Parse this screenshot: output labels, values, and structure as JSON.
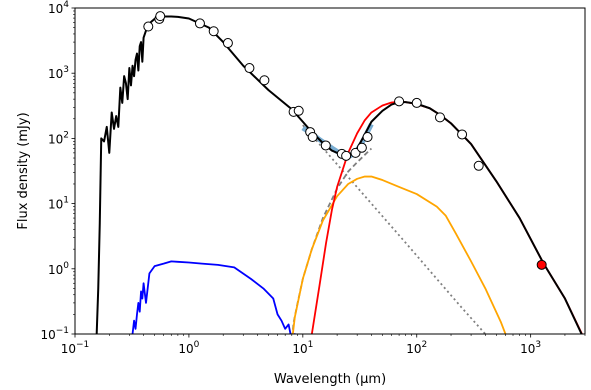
{
  "chart_data": {
    "type": "line",
    "xlabel": "Wavelength (μm)",
    "ylabel": "Flux density (mJy)",
    "x_scale": "log",
    "y_scale": "log",
    "xlim": [
      0.1,
      3000
    ],
    "ylim": [
      0.1,
      10000
    ],
    "grid": false,
    "x_ticks": [
      {
        "value": 0.1,
        "base": "10",
        "exp": "−1"
      },
      {
        "value": 1,
        "base": "10",
        "exp": "0"
      },
      {
        "value": 10,
        "base": "10",
        "exp": "1"
      },
      {
        "value": 100,
        "base": "10",
        "exp": "2"
      },
      {
        "value": 1000,
        "base": "10",
        "exp": "3"
      }
    ],
    "y_ticks": [
      {
        "value": 0.1,
        "base": "10",
        "exp": "−1"
      },
      {
        "value": 1,
        "base": "10",
        "exp": "0"
      },
      {
        "value": 10,
        "base": "10",
        "exp": "1"
      },
      {
        "value": 100,
        "base": "10",
        "exp": "2"
      },
      {
        "value": 1000,
        "base": "10",
        "exp": "3"
      },
      {
        "value": 10000,
        "base": "10",
        "exp": "4"
      }
    ],
    "series": [
      {
        "color": "#1f77b4",
        "width": 5,
        "opacity": 0.6,
        "dash": "",
        "x": [
          10,
          12,
          14,
          16,
          18,
          20,
          22,
          24,
          26,
          28,
          30,
          33,
          36,
          40
        ],
        "y": [
          145,
          118,
          96,
          82,
          71,
          63,
          57,
          54,
          54,
          58,
          66,
          85,
          115,
          165
        ]
      },
      {
        "color": "#808080",
        "width": 1.8,
        "opacity": 1,
        "dash": "2,3",
        "x": [
          10,
          20,
          40,
          80,
          150,
          250,
          400,
          700
        ],
        "y": [
          160,
          40,
          10,
          2.5,
          0.7,
          0.25,
          0.1,
          0.04
        ]
      },
      {
        "color": "#808080",
        "width": 1.8,
        "opacity": 1,
        "dash": "5,3",
        "x": [
          7.8,
          8.3,
          9,
          10,
          12,
          15,
          20,
          25,
          30,
          35,
          40
        ],
        "y": [
          0.05,
          0.15,
          0.3,
          0.7,
          2,
          6,
          17,
          31,
          43,
          56,
          70
        ]
      },
      {
        "color": "#0000ff",
        "width": 1.8,
        "opacity": 1,
        "dash": "",
        "x": [
          0.3,
          0.32,
          0.33,
          0.34,
          0.35,
          0.36,
          0.37,
          0.38,
          0.39,
          0.4,
          0.42,
          0.45,
          0.5,
          0.6,
          0.7,
          0.8,
          1.0,
          1.3,
          1.8,
          2.5,
          3.5,
          4.5,
          5.5,
          6,
          6.5,
          7,
          7.5,
          8,
          8.5,
          9
        ],
        "y": [
          0.06,
          0.1,
          0.16,
          0.12,
          0.2,
          0.3,
          0.22,
          0.45,
          0.35,
          0.6,
          0.3,
          0.85,
          1.1,
          1.2,
          1.3,
          1.28,
          1.25,
          1.2,
          1.15,
          1.05,
          0.7,
          0.5,
          0.35,
          0.2,
          0.16,
          0.12,
          0.14,
          0.08,
          0.1,
          0.06
        ]
      },
      {
        "color": "#ffa500",
        "width": 1.8,
        "opacity": 1,
        "dash": "",
        "x": [
          7.8,
          8.5,
          10,
          12,
          15,
          20,
          25,
          30,
          35,
          40,
          50,
          70,
          100,
          150,
          180,
          220,
          300,
          400,
          550,
          700
        ],
        "y": [
          0.05,
          0.18,
          0.7,
          2,
          5.5,
          13,
          20,
          24,
          26,
          26,
          23,
          18,
          14,
          9,
          6.5,
          3.5,
          1.3,
          0.5,
          0.15,
          0.05
        ]
      },
      {
        "color": "#ff0000",
        "width": 1.8,
        "opacity": 1,
        "dash": "",
        "x": [
          11,
          12,
          14,
          16,
          18,
          20,
          25,
          30,
          35,
          40,
          50,
          60,
          70,
          80,
          100,
          130,
          160,
          200,
          300,
          500,
          800,
          1300,
          2000,
          3000
        ],
        "y": [
          0.05,
          0.1,
          0.55,
          2.5,
          8,
          18,
          60,
          120,
          190,
          250,
          320,
          355,
          365,
          360,
          335,
          290,
          230,
          170,
          82,
          22,
          6,
          1.2,
          0.35,
          0.08
        ]
      },
      {
        "color": "#000000",
        "width": 2,
        "opacity": 1,
        "dash": "",
        "x": [
          0.15,
          0.155,
          0.16,
          0.165,
          0.17,
          0.18,
          0.19,
          0.2,
          0.21,
          0.22,
          0.23,
          0.24,
          0.25,
          0.26,
          0.27,
          0.28,
          0.29,
          0.3,
          0.31,
          0.32,
          0.33,
          0.34,
          0.35,
          0.36,
          0.37,
          0.38,
          0.39,
          0.4,
          0.42,
          0.45,
          0.5,
          0.55,
          0.6,
          0.7,
          0.8,
          1.0,
          1.5,
          2,
          3,
          5,
          8,
          10,
          12,
          15,
          18,
          20,
          22,
          25,
          30,
          35,
          40,
          50,
          60,
          70,
          80,
          100,
          130,
          160,
          200,
          300,
          500,
          800,
          1300,
          2000,
          2800
        ],
        "y": [
          0.05,
          0.1,
          0.5,
          5,
          100,
          90,
          150,
          60,
          250,
          140,
          220,
          150,
          600,
          350,
          900,
          700,
          400,
          1200,
          650,
          1300,
          900,
          1600,
          2000,
          1100,
          2600,
          3000,
          1500,
          3500,
          4500,
          5800,
          6800,
          7200,
          7400,
          7400,
          7300,
          6900,
          5000,
          3000,
          1300,
          550,
          280,
          180,
          125,
          85,
          65,
          60,
          56,
          55,
          70,
          115,
          180,
          265,
          330,
          360,
          360,
          340,
          290,
          230,
          170,
          82,
          22,
          6,
          1.2,
          0.35,
          0.1
        ]
      }
    ],
    "points": [
      {
        "x": 0.44,
        "y": 5200,
        "fill": "#ffffff"
      },
      {
        "x": 0.55,
        "y": 6800,
        "fill": "#ffffff"
      },
      {
        "x": 0.56,
        "y": 7500,
        "fill": "#ffffff"
      },
      {
        "x": 1.25,
        "y": 5800,
        "fill": "#ffffff"
      },
      {
        "x": 1.65,
        "y": 4400,
        "fill": "#ffffff"
      },
      {
        "x": 2.2,
        "y": 2900,
        "fill": "#ffffff"
      },
      {
        "x": 3.4,
        "y": 1200,
        "fill": "#ffffff"
      },
      {
        "x": 4.6,
        "y": 780,
        "fill": "#ffffff"
      },
      {
        "x": 8.3,
        "y": 255,
        "fill": "#ffffff"
      },
      {
        "x": 9.2,
        "y": 265,
        "fill": "#ffffff"
      },
      {
        "x": 11.6,
        "y": 125,
        "fill": "#ffffff"
      },
      {
        "x": 12.2,
        "y": 105,
        "fill": "#ffffff"
      },
      {
        "x": 15.9,
        "y": 78,
        "fill": "#ffffff"
      },
      {
        "x": 22,
        "y": 58,
        "fill": "#ffffff"
      },
      {
        "x": 24,
        "y": 54,
        "fill": "#ffffff"
      },
      {
        "x": 29,
        "y": 60,
        "fill": "#ffffff"
      },
      {
        "x": 33,
        "y": 72,
        "fill": "#ffffff"
      },
      {
        "x": 37,
        "y": 105,
        "fill": "#ffffff"
      },
      {
        "x": 70,
        "y": 370,
        "fill": "#ffffff"
      },
      {
        "x": 100,
        "y": 350,
        "fill": "#ffffff"
      },
      {
        "x": 160,
        "y": 210,
        "fill": "#ffffff"
      },
      {
        "x": 250,
        "y": 115,
        "fill": "#ffffff"
      },
      {
        "x": 350,
        "y": 38,
        "fill": "#ffffff"
      },
      {
        "x": 1250,
        "y": 1.15,
        "fill": "#ff0000"
      }
    ]
  }
}
